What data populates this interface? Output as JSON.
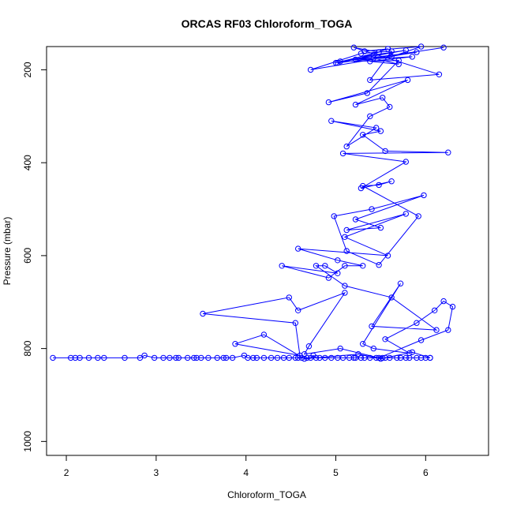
{
  "chart_data": {
    "type": "line",
    "title": "ORCAS RF03 Chloroform_TOGA",
    "xlabel": "Chloroform_TOGA",
    "ylabel": "Pressure (mbar)",
    "xlim": [
      1.78,
      6.7
    ],
    "ylim": [
      1030,
      150
    ],
    "y_reversed": true,
    "x_ticks": [
      "2",
      "3",
      "4",
      "5",
      "6"
    ],
    "y_ticks": [
      "200",
      "400",
      "600",
      "800",
      "1000"
    ],
    "series_color": "#0000ff",
    "grid": false,
    "legend": "none",
    "series": [
      {
        "x": [
          1.85,
          2.05,
          2.1,
          2.15,
          2.25,
          2.35,
          2.42,
          2.65,
          2.82,
          2.87,
          2.98,
          3.08,
          3.15,
          3.22,
          3.25,
          3.35,
          3.42,
          3.45,
          3.5,
          3.58,
          3.68,
          3.75,
          3.78,
          3.85,
          3.98,
          4.02,
          4.08,
          4.12,
          4.2,
          4.28,
          4.35,
          4.42,
          4.48,
          4.55,
          4.58,
          4.62,
          4.68,
          4.72,
          4.75,
          4.78,
          4.82,
          4.88,
          4.95,
          5.02,
          5.08,
          5.15,
          5.2,
          5.22,
          5.28,
          5.32,
          5.38,
          5.45,
          5.52,
          5.55,
          5.6,
          5.68,
          5.72,
          5.78,
          5.82,
          5.9,
          5.95,
          6.0,
          6.05
        ],
        "y": [
          820,
          820,
          820,
          820,
          820,
          820,
          820,
          820,
          820,
          815,
          820,
          820,
          820,
          820,
          820,
          820,
          820,
          820,
          820,
          820,
          820,
          820,
          820,
          820,
          815,
          820,
          820,
          820,
          820,
          820,
          820,
          820,
          820,
          820,
          820,
          820,
          820,
          820,
          815,
          820,
          820,
          820,
          820,
          820,
          820,
          820,
          820,
          820,
          820,
          820,
          820,
          820,
          820,
          820,
          820,
          820,
          820,
          820,
          820,
          820,
          820,
          820,
          820
        ]
      },
      {
        "x": [
          6.05,
          5.85,
          5.5,
          5.25,
          4.65,
          4.2,
          3.88,
          4.6,
          4.55,
          3.52,
          4.48,
          4.58,
          5.1,
          4.7,
          4.65,
          5.05,
          5.48,
          5.95,
          6.25,
          6.3,
          6.2,
          6.1,
          5.9,
          5.55,
          5.82,
          5.42,
          5.3,
          5.72,
          5.4,
          6.12,
          5.62,
          5.1,
          4.78,
          4.88,
          5.02,
          4.4,
          4.92,
          5.1,
          5.3,
          5.02,
          4.58,
          5.58,
          5.1,
          5.78,
          5.12,
          5.5,
          5.22,
          5.98,
          5.4,
          4.98,
          5.12,
          5.48,
          5.92,
          5.3,
          5.48,
          5.62,
          5.28,
          5.78,
          5.08,
          6.25,
          5.55,
          5.3,
          5.5,
          4.95,
          5.45,
          5.12,
          5.38,
          5.6,
          5.52,
          5.22,
          5.8,
          4.92,
          5.35,
          5.7,
          5.05,
          5.9,
          4.72,
          5.28,
          5.62,
          5.38,
          6.15,
          5.2,
          5.48,
          5.0,
          5.78,
          5.42,
          5.02,
          5.62,
          5.95,
          5.32,
          5.58,
          5.22,
          5.85,
          5.38,
          5.7,
          5.42,
          6.2
        ],
        "y": [
          820,
          808,
          822,
          812,
          822,
          770,
          790,
          815,
          745,
          725,
          690,
          718,
          680,
          795,
          812,
          800,
          820,
          782,
          760,
          710,
          698,
          718,
          745,
          780,
          810,
          800,
          790,
          660,
          752,
          760,
          690,
          665,
          622,
          622,
          638,
          622,
          648,
          622,
          622,
          610,
          585,
          600,
          560,
          510,
          545,
          540,
          522,
          470,
          500,
          515,
          590,
          620,
          515,
          450,
          448,
          440,
          455,
          398,
          380,
          378,
          375,
          340,
          332,
          310,
          325,
          365,
          300,
          280,
          260,
          275,
          222,
          270,
          250,
          180,
          182,
          162,
          200,
          165,
          160,
          222,
          210,
          152,
          162,
          185,
          158,
          168,
          185,
          172,
          150,
          160,
          155,
          178,
          172,
          182,
          188,
          175,
          152
        ]
      }
    ]
  }
}
